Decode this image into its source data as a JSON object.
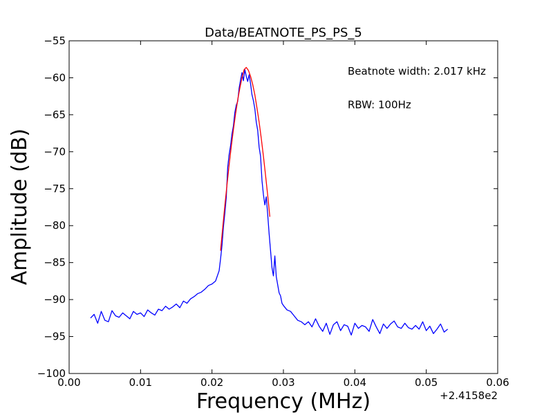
{
  "chart_data": {
    "type": "line",
    "title": "Data/BEATNOTE_PS_PS_5",
    "xlabel": "Frequency (MHz)",
    "ylabel": "Amplitude (dB)",
    "xlim": [
      0.0,
      0.06
    ],
    "ylim": [
      -100,
      -55
    ],
    "x_offset_label": "+2.4158e2",
    "grid": false,
    "xticks": [
      {
        "value": 0.0,
        "label": "0.00"
      },
      {
        "value": 0.01,
        "label": "0.01"
      },
      {
        "value": 0.02,
        "label": "0.02"
      },
      {
        "value": 0.03,
        "label": "0.03"
      },
      {
        "value": 0.04,
        "label": "0.04"
      },
      {
        "value": 0.05,
        "label": "0.05"
      },
      {
        "value": 0.06,
        "label": "0.06"
      }
    ],
    "yticks": [
      {
        "value": -55,
        "label": "−55"
      },
      {
        "value": -60,
        "label": "−60"
      },
      {
        "value": -65,
        "label": "−65"
      },
      {
        "value": -70,
        "label": "−70"
      },
      {
        "value": -75,
        "label": "−75"
      },
      {
        "value": -80,
        "label": "−80"
      },
      {
        "value": -85,
        "label": "−85"
      },
      {
        "value": -90,
        "label": "−90"
      },
      {
        "value": -95,
        "label": "−95"
      },
      {
        "value": -100,
        "label": "−100"
      }
    ],
    "annotations": [
      {
        "text": "Beatnote width: 2.017 kHz",
        "x": 0.039,
        "y": -59.6
      },
      {
        "text": "RBW: 100Hz",
        "x": 0.039,
        "y": -64.1
      }
    ],
    "series": [
      {
        "color": "#0000ff",
        "x": [
          0.003,
          0.0035,
          0.004,
          0.0045,
          0.005,
          0.0055,
          0.006,
          0.0065,
          0.007,
          0.0075,
          0.008,
          0.0085,
          0.009,
          0.0095,
          0.01,
          0.0105,
          0.011,
          0.0115,
          0.012,
          0.0125,
          0.013,
          0.0135,
          0.014,
          0.0145,
          0.015,
          0.0155,
          0.016,
          0.0165,
          0.017,
          0.0175,
          0.018,
          0.0185,
          0.019,
          0.0195,
          0.02,
          0.0205,
          0.021,
          0.0212,
          0.0214,
          0.0216,
          0.0218,
          0.022,
          0.0222,
          0.0224,
          0.0226,
          0.0228,
          0.023,
          0.0232,
          0.0234,
          0.0236,
          0.0238,
          0.024,
          0.0242,
          0.0244,
          0.0246,
          0.0248,
          0.025,
          0.0252,
          0.0254,
          0.0256,
          0.0258,
          0.026,
          0.0262,
          0.0264,
          0.0266,
          0.0268,
          0.027,
          0.0272,
          0.0274,
          0.0276,
          0.0278,
          0.028,
          0.0282,
          0.0284,
          0.0286,
          0.0288,
          0.029,
          0.0292,
          0.0294,
          0.0296,
          0.0298,
          0.03,
          0.0305,
          0.031,
          0.0315,
          0.032,
          0.0325,
          0.033,
          0.0335,
          0.034,
          0.0345,
          0.035,
          0.0355,
          0.036,
          0.0365,
          0.037,
          0.0375,
          0.038,
          0.0385,
          0.039,
          0.0395,
          0.04,
          0.0405,
          0.041,
          0.0415,
          0.042,
          0.0425,
          0.043,
          0.0435,
          0.044,
          0.0445,
          0.045,
          0.0455,
          0.046,
          0.0465,
          0.047,
          0.0475,
          0.048,
          0.0485,
          0.049,
          0.0495,
          0.05,
          0.0505,
          0.051,
          0.0515,
          0.052,
          0.0525,
          0.053
        ],
        "y": [
          -92.5,
          -92.0,
          -93.2,
          -91.6,
          -92.8,
          -93.0,
          -91.5,
          -92.2,
          -92.4,
          -91.8,
          -92.2,
          -92.6,
          -91.6,
          -92.0,
          -91.8,
          -92.3,
          -91.4,
          -91.8,
          -92.1,
          -91.3,
          -91.5,
          -90.9,
          -91.3,
          -91.0,
          -90.6,
          -91.1,
          -90.2,
          -90.5,
          -89.9,
          -89.6,
          -89.2,
          -89.0,
          -88.6,
          -88.1,
          -87.9,
          -87.5,
          -86.1,
          -84.5,
          -82.7,
          -80.2,
          -78.3,
          -76.2,
          -72.1,
          -70.4,
          -69.2,
          -67.6,
          -66.5,
          -64.7,
          -63.7,
          -63.2,
          -61.4,
          -60.3,
          -59.3,
          -60.4,
          -58.9,
          -59.8,
          -60.5,
          -59.6,
          -60.8,
          -62.3,
          -63.1,
          -64.2,
          -66.0,
          -67.1,
          -69.4,
          -70.6,
          -73.9,
          -75.8,
          -77.2,
          -76.1,
          -78.5,
          -81.1,
          -83.4,
          -85.7,
          -86.8,
          -84.1,
          -86.9,
          -88.0,
          -89.1,
          -89.5,
          -90.5,
          -90.8,
          -91.4,
          -91.6,
          -92.2,
          -92.8,
          -93.0,
          -93.4,
          -93.0,
          -93.7,
          -92.6,
          -93.6,
          -94.3,
          -93.2,
          -94.7,
          -93.4,
          -93.0,
          -94.2,
          -93.4,
          -93.6,
          -94.8,
          -93.2,
          -93.9,
          -93.5,
          -93.7,
          -94.3,
          -92.7,
          -93.7,
          -94.6,
          -93.3,
          -93.9,
          -93.3,
          -92.9,
          -93.7,
          -93.9,
          -93.2,
          -93.8,
          -94.0,
          -93.5,
          -94.0,
          -93.0,
          -94.2,
          -93.6,
          -94.6,
          -94.0,
          -93.3,
          -94.4,
          -94.0
        ]
      },
      {
        "color": "#ff0000",
        "x": [
          0.0212,
          0.0215,
          0.0218,
          0.0221,
          0.0224,
          0.0227,
          0.023,
          0.0233,
          0.0236,
          0.0239,
          0.0242,
          0.0245,
          0.0248,
          0.0251,
          0.0254,
          0.0257,
          0.026,
          0.0263,
          0.0266,
          0.0269,
          0.0272,
          0.0275,
          0.0278,
          0.0281
        ],
        "y": [
          -83.4,
          -80.3,
          -77.3,
          -74.5,
          -71.8,
          -69.3,
          -67.0,
          -64.9,
          -63.0,
          -61.4,
          -60.0,
          -58.9,
          -58.6,
          -59.0,
          -59.8,
          -60.9,
          -62.3,
          -64.1,
          -66.0,
          -68.2,
          -70.6,
          -73.2,
          -75.9,
          -78.8
        ]
      }
    ]
  }
}
